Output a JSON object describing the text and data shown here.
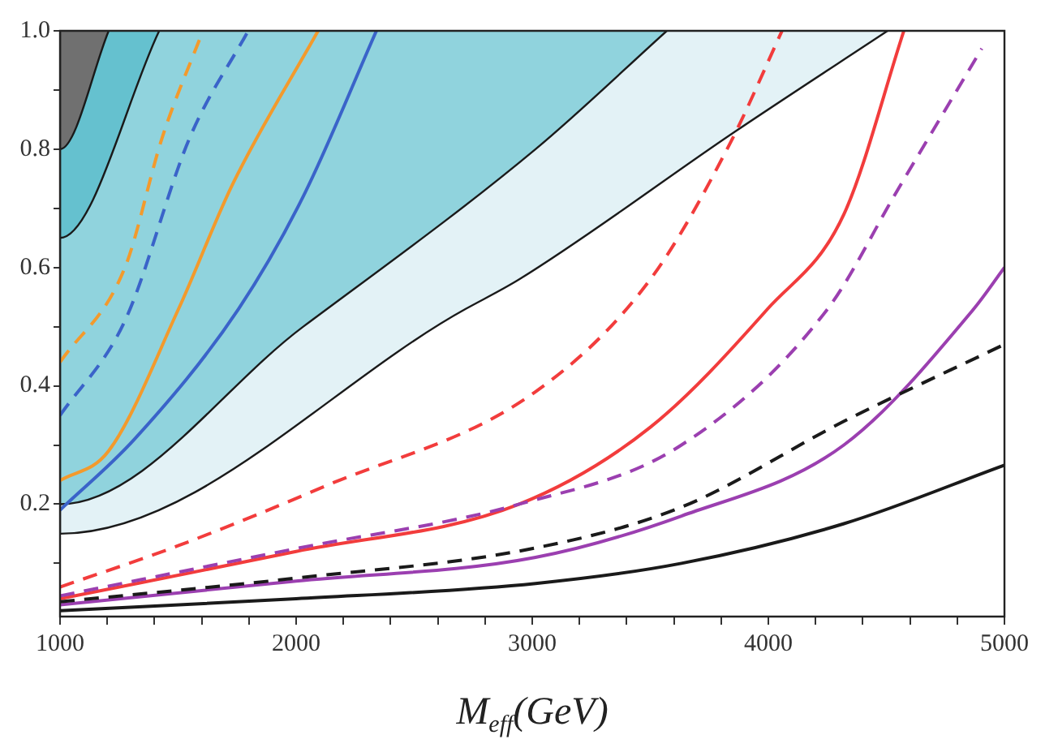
{
  "chart_data": {
    "type": "line",
    "xlabel": "M$_{eff}$(GeV)",
    "xlim": [
      1000,
      5000
    ],
    "xticks": [
      1000,
      {
        "value": 1200,
        "label": null
      },
      {
        "value": 1400,
        "label": null
      },
      {
        "value": 1600,
        "label": null
      },
      {
        "value": 1800,
        "label": null
      },
      2000,
      {
        "value": 2200,
        "label": null
      },
      {
        "value": 2400,
        "label": null
      },
      {
        "value": 2600,
        "label": null
      },
      {
        "value": 2800,
        "label": null
      },
      3000,
      {
        "value": 3200,
        "label": null
      },
      {
        "value": 3400,
        "label": null
      },
      {
        "value": 3600,
        "label": null
      },
      {
        "value": 3800,
        "label": null
      },
      4000,
      {
        "value": 4200,
        "label": null
      },
      {
        "value": 4400,
        "label": null
      },
      {
        "value": 4600,
        "label": null
      },
      {
        "value": 4800,
        "label": null
      },
      5000
    ],
    "ylim": [
      0.01,
      1.0
    ],
    "yticks": [
      {
        "value": 0.1,
        "label": null
      },
      0.2,
      {
        "value": 0.3,
        "label": null
      },
      0.4,
      {
        "value": 0.5,
        "label": null
      },
      0.6,
      {
        "value": 0.7,
        "label": null
      },
      0.8,
      {
        "value": 0.9,
        "label": null
      },
      {
        "value": 1.0,
        "label": "1.0"
      }
    ],
    "grid": false,
    "legend": false,
    "marker": "none",
    "series": [
      {
        "type": "area",
        "color": "#e3f2f6",
        "x": [
          1000,
          1000,
          2718,
          2945,
          3860,
          4505
        ],
        "values": [
          1.0,
          0.15,
          0.53,
          0.58,
          0.83,
          1.0
        ]
      },
      {
        "type": "area",
        "color": "#90d3dd",
        "x": [
          1000,
          1000,
          2030,
          3014,
          3570
        ],
        "values": [
          1.0,
          0.2,
          0.5,
          0.8,
          1.0
        ]
      },
      {
        "type": "area",
        "color": "#65c1cf",
        "x": [
          1000,
          1000,
          1420
        ],
        "values": [
          1.0,
          0.65,
          1.0
        ]
      },
      {
        "type": "area",
        "color": "#707070",
        "x": [
          1000,
          1000,
          1206
        ],
        "values": [
          1.0,
          0.8,
          1.0
        ]
      },
      {
        "color": "#f39a2c",
        "line_style": "dashed",
        "x": [
          1000,
          1275,
          1433,
          1605
        ],
        "values": [
          0.44,
          0.6,
          0.82,
          1.0
        ]
      },
      {
        "color": "#3a63c9",
        "line_style": "dashed",
        "x": [
          1000,
          1275,
          1550,
          1797
        ],
        "values": [
          0.35,
          0.51,
          0.82,
          1.0
        ]
      },
      {
        "color": "#f39a2c",
        "line_style": "solid",
        "x": [
          1000,
          1206,
          1502,
          1730,
          2093
        ],
        "values": [
          0.24,
          0.29,
          0.53,
          0.74,
          1.0
        ]
      },
      {
        "color": "#3a63c9",
        "line_style": "solid",
        "x": [
          1000,
          1316,
          1756,
          2030,
          2340
        ],
        "values": [
          0.19,
          0.31,
          0.53,
          0.72,
          1.0
        ]
      },
      {
        "color": "#f23c3c",
        "line_style": "dashed",
        "x": [
          1000,
          1502,
          2120,
          3014,
          3500,
          3838,
          4058
        ],
        "values": [
          0.06,
          0.13,
          0.23,
          0.39,
          0.58,
          0.81,
          1.0
        ]
      },
      {
        "color": "#f23c3c",
        "line_style": "solid",
        "x": [
          1000,
          2000,
          2945,
          3500,
          3997,
          4320,
          4574
        ],
        "values": [
          0.04,
          0.12,
          0.2,
          0.33,
          0.53,
          0.69,
          1.0
        ]
      },
      {
        "color": "#9b3fb0",
        "line_style": "dashed",
        "x": [
          1000,
          2000,
          2945,
          3632,
          4251,
          4546,
          4904
        ],
        "values": [
          0.045,
          0.125,
          0.2,
          0.3,
          0.53,
          0.73,
          0.97
        ]
      },
      {
        "color": "#9b3fb0",
        "line_style": "solid",
        "x": [
          1000,
          2000,
          3014,
          3632,
          4320,
          4870,
          5000
        ],
        "values": [
          0.03,
          0.07,
          0.11,
          0.18,
          0.3,
          0.53,
          0.6
        ]
      },
      {
        "color": "#1a1a1a",
        "line_style": "dashed",
        "x": [
          1000,
          2000,
          3014,
          3632,
          4320,
          5000
        ],
        "values": [
          0.035,
          0.075,
          0.126,
          0.195,
          0.34,
          0.47
        ]
      },
      {
        "color": "#1a1a1a",
        "line_style": "solid",
        "x": [
          1000,
          2000,
          3014,
          3632,
          4320,
          5000
        ],
        "values": [
          0.02,
          0.04,
          0.066,
          0.1,
          0.167,
          0.266
        ]
      }
    ]
  }
}
